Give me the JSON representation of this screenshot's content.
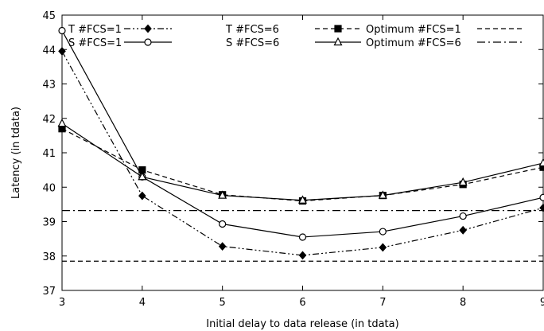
{
  "chart_data": {
    "type": "line",
    "title": "",
    "xlabel": "Initial delay to data release (in tdata)",
    "ylabel": "Latency (in tdata)",
    "xlim": [
      3,
      9
    ],
    "ylim": [
      37,
      45
    ],
    "x_ticks": [
      "3",
      "4",
      "5",
      "6",
      "7",
      "8",
      "9"
    ],
    "y_ticks": [
      "37",
      "38",
      "39",
      "40",
      "41",
      "42",
      "43",
      "44",
      "45"
    ],
    "grid": false,
    "legend_position": "top",
    "x": [
      3,
      4,
      5,
      6,
      7,
      8,
      9
    ],
    "series": [
      {
        "name": "T #FCS=1",
        "style": "dash-dot-dot",
        "marker": "diamond-filled",
        "values": [
          43.95,
          39.75,
          38.28,
          38.02,
          38.25,
          38.75,
          39.4
        ]
      },
      {
        "name": "S #FCS=1",
        "style": "solid",
        "marker": "circle-open",
        "values": [
          44.55,
          40.3,
          38.93,
          38.55,
          38.71,
          39.16,
          39.7
        ]
      },
      {
        "name": "T #FCS=6",
        "style": "dashed",
        "marker": "square-filled",
        "values": [
          41.7,
          40.5,
          39.78,
          39.6,
          39.76,
          40.08,
          40.58
        ]
      },
      {
        "name": "S #FCS=6",
        "style": "solid",
        "marker": "triangle-open",
        "values": [
          41.85,
          40.3,
          39.76,
          39.62,
          39.76,
          40.14,
          40.7
        ]
      },
      {
        "name": "Optimum #FCS=1",
        "style": "dashed",
        "marker": "none",
        "values": [
          37.85,
          37.85,
          37.85,
          37.85,
          37.85,
          37.85,
          37.85
        ]
      },
      {
        "name": "Optimum #FCS=6",
        "style": "dash-dot",
        "marker": "none",
        "values": [
          39.32,
          39.32,
          39.32,
          39.32,
          39.32,
          39.32,
          39.32
        ]
      }
    ]
  }
}
